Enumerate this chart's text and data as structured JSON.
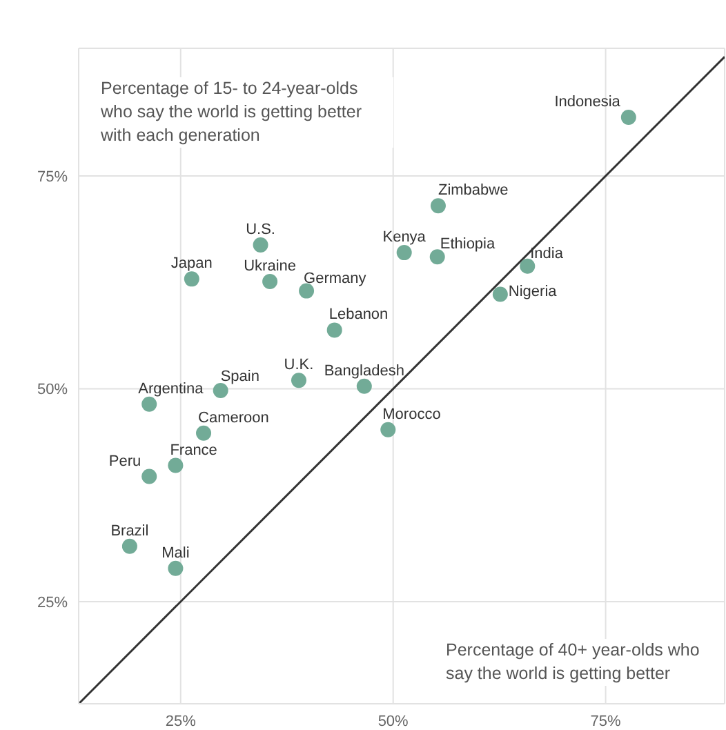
{
  "chart_data": {
    "type": "scatter",
    "ylabel": "Percentage of 15- to 24-year-olds who say the world is getting better with each generation",
    "xlabel": "Percentage of 40+ year-olds who say the world is getting better",
    "xlim": [
      13,
      89
    ],
    "ylim": [
      13,
      90
    ],
    "xticks": [
      {
        "value": 25,
        "label": "25%"
      },
      {
        "value": 50,
        "label": "50%"
      },
      {
        "value": 75,
        "label": "75%"
      }
    ],
    "yticks": [
      {
        "value": 25,
        "label": "25%"
      },
      {
        "value": 50,
        "label": "50%"
      },
      {
        "value": 75,
        "label": "75%"
      }
    ],
    "grid": true,
    "series": [
      {
        "marker": "circle",
        "color": "#72ab97",
        "x": [
          77.7,
          55.3,
          34.4,
          51.3,
          55.2,
          65.8,
          26.3,
          35.5,
          39.8,
          62.6,
          43.1,
          38.9,
          46.6,
          29.7,
          21.3,
          49.4,
          27.7,
          24.4,
          21.3,
          19.0,
          24.4
        ],
        "values": [
          81.9,
          71.5,
          66.9,
          66.0,
          65.5,
          64.4,
          62.9,
          62.6,
          61.5,
          61.1,
          56.9,
          51.0,
          50.3,
          49.8,
          48.2,
          45.2,
          44.8,
          41.0,
          39.7,
          31.5,
          28.9
        ]
      },
      {
        "type": "line",
        "color": "#333333",
        "line_style": "solid",
        "x": [
          13,
          89
        ],
        "values": [
          13,
          89
        ]
      }
    ],
    "annotations": [
      {
        "text": "Indonesia",
        "x": 77.7,
        "y": 81.9
      },
      {
        "text": "Zimbabwe",
        "x": 55.3,
        "y": 71.5
      },
      {
        "text": "U.S.",
        "x": 34.4,
        "y": 66.9
      },
      {
        "text": "Kenya",
        "x": 51.3,
        "y": 66.0
      },
      {
        "text": "Ethiopia",
        "x": 55.2,
        "y": 65.5
      },
      {
        "text": "India",
        "x": 65.8,
        "y": 64.4
      },
      {
        "text": "Japan",
        "x": 26.3,
        "y": 62.9
      },
      {
        "text": "Ukraine",
        "x": 35.5,
        "y": 62.6
      },
      {
        "text": "Germany",
        "x": 39.8,
        "y": 61.5
      },
      {
        "text": "Nigeria",
        "x": 62.6,
        "y": 61.1
      },
      {
        "text": "Lebanon",
        "x": 43.1,
        "y": 56.9
      },
      {
        "text": "U.K.",
        "x": 38.9,
        "y": 51.0
      },
      {
        "text": "Bangladesh",
        "x": 46.6,
        "y": 50.3
      },
      {
        "text": "Spain",
        "x": 29.7,
        "y": 49.8
      },
      {
        "text": "Argentina",
        "x": 21.3,
        "y": 48.2
      },
      {
        "text": "Morocco",
        "x": 49.4,
        "y": 45.2
      },
      {
        "text": "Cameroon",
        "x": 27.7,
        "y": 44.8
      },
      {
        "text": "France",
        "x": 24.4,
        "y": 41.0
      },
      {
        "text": "Peru",
        "x": 21.3,
        "y": 39.7
      },
      {
        "text": "Brazil",
        "x": 19.0,
        "y": 31.5
      },
      {
        "text": "Mali",
        "x": 24.4,
        "y": 28.9
      }
    ]
  }
}
